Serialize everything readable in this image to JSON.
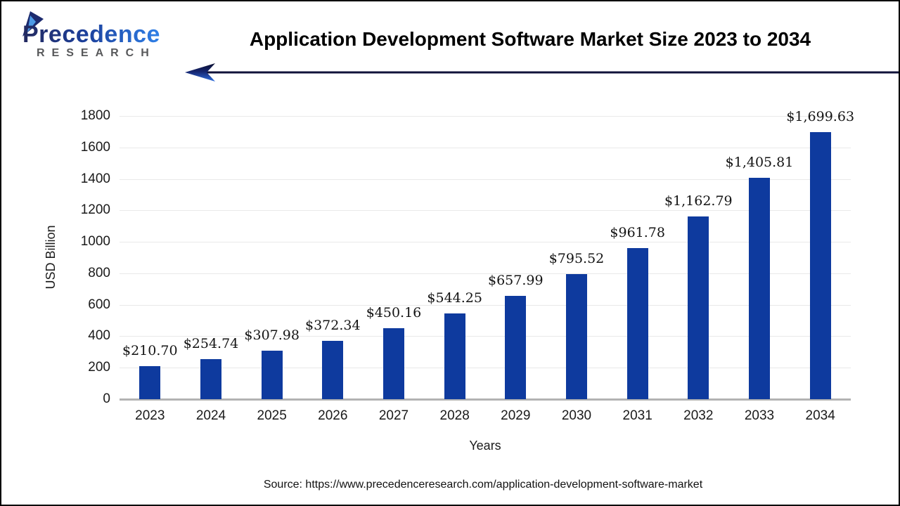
{
  "logo": {
    "name": "Precedence",
    "sub": "RESEARCH",
    "gradient_start": "#23295f",
    "gradient_end": "#2f80e8",
    "sub_color": "#58595b"
  },
  "header": {
    "title": "Application Development Software Market Size 2023 to 2034",
    "arrow_color": "#10123a"
  },
  "chart_data": {
    "type": "bar",
    "title": "Application Development Software Market Size 2023 to 2034",
    "categories": [
      "2023",
      "2024",
      "2025",
      "2026",
      "2027",
      "2028",
      "2029",
      "2030",
      "2031",
      "2032",
      "2033",
      "2034"
    ],
    "values": [
      210.7,
      254.74,
      307.98,
      372.34,
      450.16,
      544.25,
      657.99,
      795.52,
      961.78,
      1162.79,
      1405.81,
      1699.63
    ],
    "value_labels": [
      "$210.70",
      "$254.74",
      "$307.98",
      "$372.34",
      "$450.16",
      "$544.25",
      "$657.99",
      "$795.52",
      "$961.78",
      "$1,162.79",
      "$1,405.81",
      "$1,699.63"
    ],
    "xlabel": "Years",
    "ylabel": "USD Billion",
    "ylim": [
      0,
      1800
    ],
    "yticks": [
      0,
      200,
      400,
      600,
      800,
      1000,
      1200,
      1400,
      1600,
      1800
    ],
    "bar_color": "#0e3a9e",
    "grid": true,
    "gridline_color": "#e9e9e9",
    "baseline_color": "#b3b3b3",
    "legend": "none"
  },
  "footer": {
    "source": "Source: https://www.precedenceresearch.com/application-development-software-market"
  }
}
